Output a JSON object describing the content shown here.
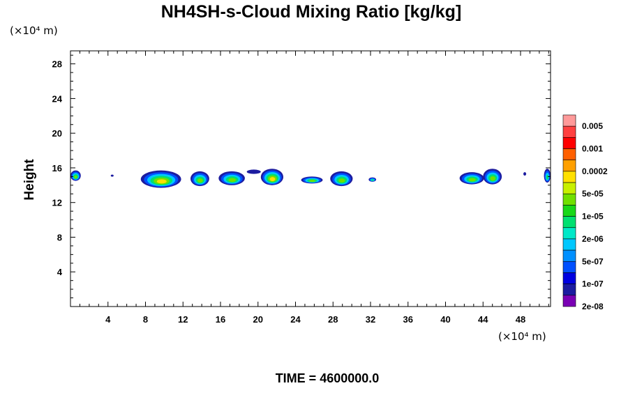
{
  "chart_data": {
    "type": "heatmap",
    "title": "NH4SH-s-Cloud Mixing Ratio [kg/kg]",
    "ylabel": "Height",
    "y_unit": "(×10⁴ m)",
    "x_unit": "(×10⁴ m)",
    "xlim": [
      0,
      51.2
    ],
    "ylim": [
      0,
      29.5
    ],
    "x_ticks": [
      4,
      8,
      12,
      16,
      20,
      24,
      28,
      32,
      36,
      40,
      44,
      48
    ],
    "x_tick_labels": [
      "4",
      "8",
      "12",
      "16",
      "20",
      "24",
      "28",
      "32",
      "36",
      "40",
      "44",
      "48"
    ],
    "y_ticks": [
      4,
      8,
      12,
      16,
      20,
      24,
      28
    ],
    "y_tick_labels": [
      "4",
      "8",
      "12",
      "16",
      "20",
      "24",
      "28"
    ],
    "colorbar": {
      "labels": [
        "0.005",
        "0.001",
        "0.0002",
        "5e-05",
        "1e-05",
        "2e-06",
        "5e-07",
        "1e-07",
        "2e-08"
      ],
      "colors": [
        "#ff9a9a",
        "#ff4040",
        "#ff0000",
        "#ff6000",
        "#ffa000",
        "#ffe000",
        "#c8f000",
        "#70e000",
        "#18d818",
        "#00e070",
        "#00e8c8",
        "#00c8ff",
        "#0090ff",
        "#0050ff",
        "#0000e0",
        "#1c1ca0",
        "#7a00b4"
      ]
    },
    "cloud_patches": [
      {
        "x": [
          0,
          1.1
        ],
        "y": [
          14.5,
          15.7
        ],
        "max_level": "1e-05"
      },
      {
        "x": [
          4.3,
          4.6
        ],
        "y": [
          15.0,
          15.2
        ],
        "max_level": "2e-08"
      },
      {
        "x": [
          7.5,
          11.8
        ],
        "y": [
          13.7,
          15.7
        ],
        "max_level": "5e-05"
      },
      {
        "x": [
          12.8,
          14.8
        ],
        "y": [
          13.9,
          15.6
        ],
        "max_level": "1e-05"
      },
      {
        "x": [
          15.8,
          18.6
        ],
        "y": [
          14.0,
          15.6
        ],
        "max_level": "1e-05"
      },
      {
        "x": [
          18.8,
          20.3
        ],
        "y": [
          15.3,
          15.8
        ],
        "max_level": "2e-08"
      },
      {
        "x": [
          20.3,
          22.7
        ],
        "y": [
          14.0,
          15.9
        ],
        "max_level": "5e-05"
      },
      {
        "x": [
          24.6,
          26.9
        ],
        "y": [
          14.2,
          15.0
        ],
        "max_level": "1e-05"
      },
      {
        "x": [
          27.7,
          30.1
        ],
        "y": [
          13.9,
          15.6
        ],
        "max_level": "1e-05"
      },
      {
        "x": [
          31.8,
          32.6
        ],
        "y": [
          14.4,
          14.9
        ],
        "max_level": "2e-06"
      },
      {
        "x": [
          41.5,
          44.1
        ],
        "y": [
          14.1,
          15.5
        ],
        "max_level": "1e-05"
      },
      {
        "x": [
          44.0,
          46.0
        ],
        "y": [
          14.1,
          15.9
        ],
        "max_level": "1e-05"
      },
      {
        "x": [
          48.3,
          48.6
        ],
        "y": [
          15.1,
          15.5
        ],
        "max_level": "2e-08"
      },
      {
        "x": [
          50.5,
          51.2
        ],
        "y": [
          14.3,
          15.9
        ],
        "max_level": "2e-06"
      }
    ],
    "legend": "right",
    "grid": false
  },
  "footer": {
    "time_label": "TIME = 4600000.0"
  }
}
